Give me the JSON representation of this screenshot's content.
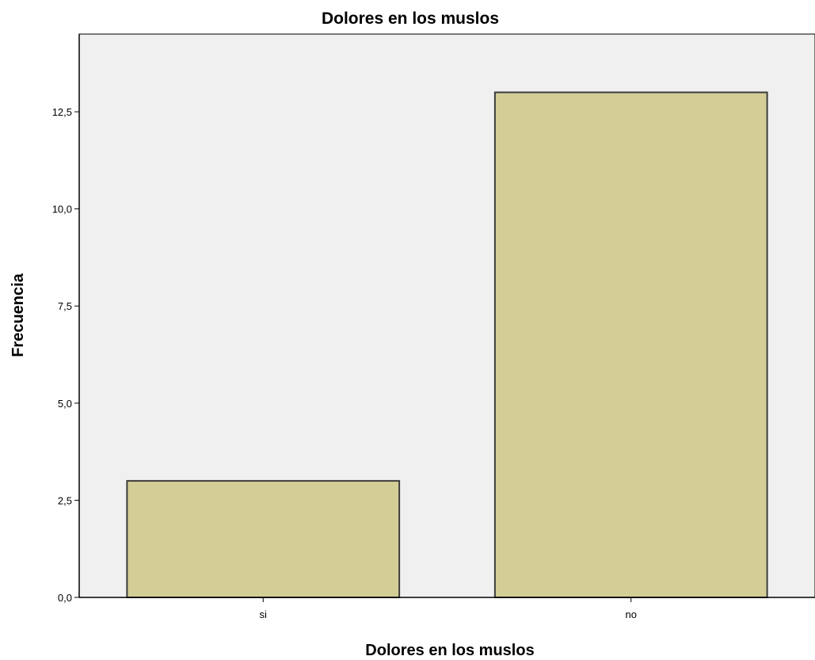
{
  "chart_data": {
    "type": "bar",
    "title": "Dolores en los muslos",
    "xlabel": "Dolores en los muslos",
    "ylabel": "Frecuencia",
    "categories": [
      "si",
      "no"
    ],
    "values": [
      3,
      13
    ],
    "ylim": [
      0,
      14.5
    ],
    "yticks": [
      0,
      2.5,
      5,
      7.5,
      10,
      12.5
    ],
    "ytick_labels": [
      "0,0",
      "2,5",
      "5,0",
      "7,5",
      "10,0",
      "12,5"
    ],
    "grid": false,
    "legend": "none",
    "colors": {
      "plot_background": "#f0f0f0",
      "bar_fill": "#d3cd96",
      "bar_stroke": "#3c3c3c",
      "axis": "#000000"
    }
  }
}
